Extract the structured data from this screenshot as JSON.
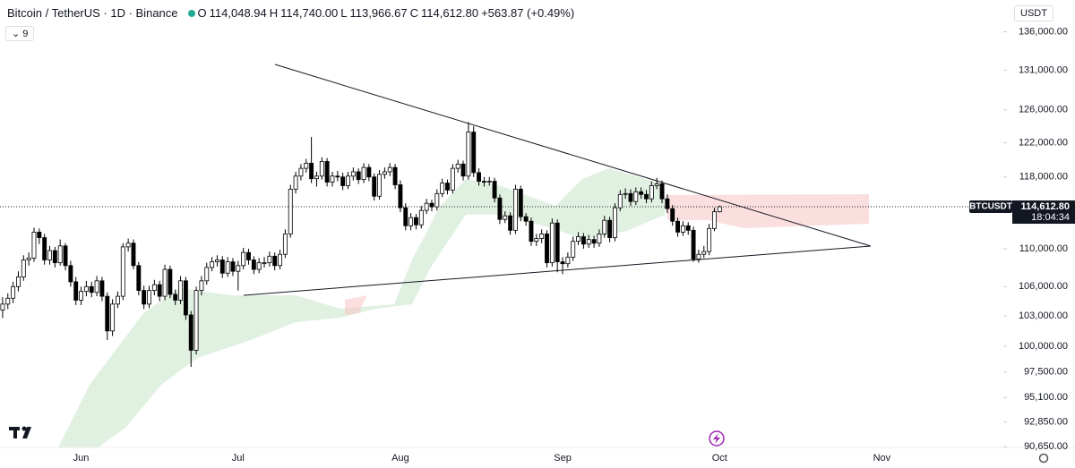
{
  "header": {
    "symbol": "Bitcoin / TetherUS · 1D · Binance",
    "open_letter": "O",
    "open": "114,048.94",
    "high_letter": "H",
    "high": "114,740.00",
    "low_letter": "L",
    "low": "113,966.67",
    "close_letter": "C",
    "close": "114,612.80",
    "change": "+563.87 (+0.49%)",
    "indicators_count": "9",
    "currency": "USDT"
  },
  "chart_data": {
    "type": "candlestick",
    "log_scale": true,
    "grid": false,
    "up_color": "#ffffff",
    "down_color": "#000000",
    "wick_color": "#000000",
    "categories": [
      null,
      null,
      null,
      null,
      null,
      null,
      null,
      null,
      null,
      null,
      null,
      null,
      null,
      null,
      null,
      "Jun",
      null,
      null,
      null,
      null,
      null,
      null,
      null,
      null,
      null,
      null,
      null,
      null,
      null,
      null,
      null,
      null,
      null,
      null,
      null,
      null,
      null,
      null,
      null,
      null,
      null,
      null,
      null,
      null,
      null,
      "Jul",
      null,
      null,
      null,
      null,
      null,
      null,
      null,
      null,
      null,
      null,
      null,
      null,
      null,
      null,
      null,
      null,
      null,
      null,
      null,
      null,
      null,
      null,
      null,
      null,
      null,
      null,
      null,
      null,
      null,
      null,
      "Aug",
      null,
      null,
      null,
      null,
      null,
      null,
      null,
      null,
      null,
      null,
      null,
      null,
      null,
      null,
      null,
      null,
      null,
      null,
      null,
      null,
      null,
      null,
      null,
      null,
      null,
      null,
      null,
      null,
      null,
      null,
      "Sep",
      null,
      null,
      null,
      null,
      null,
      null,
      null,
      null,
      null,
      null,
      null,
      null,
      null,
      null,
      null,
      null,
      null,
      null,
      null,
      null,
      null,
      null,
      null,
      null,
      null,
      null,
      null,
      null,
      null,
      "Oct",
      null,
      null,
      null,
      null,
      null,
      null,
      null,
      null,
      null,
      null,
      null,
      null,
      null,
      null,
      null,
      null,
      null,
      null,
      null,
      null,
      null,
      null,
      null,
      null,
      null,
      null,
      null,
      null,
      null,
      null,
      "Nov",
      null,
      null,
      null,
      null,
      null,
      null,
      null,
      null,
      null,
      null,
      null,
      null,
      null,
      null,
      null,
      null,
      null,
      null,
      null,
      null,
      null
    ],
    "ohlc": [
      [
        103600,
        104900,
        102800,
        104200
      ],
      [
        104200,
        105300,
        103700,
        104800
      ],
      [
        104800,
        106500,
        104300,
        106000
      ],
      [
        106000,
        107600,
        105500,
        107000
      ],
      [
        107000,
        109300,
        106600,
        108800
      ],
      [
        108800,
        109600,
        108200,
        109000
      ],
      [
        109000,
        112300,
        108600,
        111800
      ],
      [
        111800,
        112200,
        110500,
        111200
      ],
      [
        111200,
        111600,
        108300,
        108800
      ],
      [
        108800,
        110300,
        108300,
        109800
      ],
      [
        109800,
        110200,
        108000,
        108500
      ],
      [
        108500,
        111000,
        108200,
        110300
      ],
      [
        110300,
        110600,
        107700,
        108200
      ],
      [
        108200,
        108700,
        106000,
        106500
      ],
      [
        106500,
        107000,
        104100,
        104600
      ],
      [
        104600,
        106000,
        104100,
        105500
      ],
      [
        105500,
        106600,
        105000,
        106000
      ],
      [
        106000,
        106500,
        104900,
        105400
      ],
      [
        105400,
        107100,
        105000,
        106600
      ],
      [
        106600,
        107000,
        104500,
        105000
      ],
      [
        105000,
        105400,
        100600,
        101500
      ],
      [
        101500,
        104700,
        101000,
        104200
      ],
      [
        104200,
        105500,
        103800,
        105000
      ],
      [
        105000,
        110600,
        104600,
        110200
      ],
      [
        110200,
        111100,
        109700,
        110600
      ],
      [
        110600,
        111000,
        107800,
        108200
      ],
      [
        108200,
        108600,
        105100,
        105600
      ],
      [
        105600,
        106100,
        103700,
        104200
      ],
      [
        104200,
        106100,
        103800,
        105600
      ],
      [
        105600,
        106700,
        105100,
        106200
      ],
      [
        106200,
        106600,
        104500,
        105000
      ],
      [
        105000,
        108300,
        104600,
        107800
      ],
      [
        107800,
        108200,
        104800,
        105200
      ],
      [
        105200,
        105700,
        104100,
        104600
      ],
      [
        104600,
        107100,
        104200,
        106600
      ],
      [
        106600,
        107000,
        102600,
        103100
      ],
      [
        103100,
        103500,
        98000,
        99600
      ],
      [
        99600,
        106000,
        99200,
        105600
      ],
      [
        105600,
        107100,
        105100,
        106600
      ],
      [
        106600,
        108500,
        106200,
        108000
      ],
      [
        108000,
        109100,
        107600,
        108600
      ],
      [
        108600,
        109300,
        108100,
        108800
      ],
      [
        108800,
        109200,
        106900,
        107400
      ],
      [
        107400,
        109100,
        107000,
        108600
      ],
      [
        108600,
        109000,
        107100,
        107600
      ],
      [
        107600,
        108700,
        105600,
        108200
      ],
      [
        108200,
        110100,
        107800,
        109600
      ],
      [
        109600,
        110000,
        108300,
        108800
      ],
      [
        108800,
        109200,
        107300,
        107800
      ],
      [
        107800,
        109000,
        107400,
        108500
      ],
      [
        108500,
        109100,
        108000,
        108500
      ],
      [
        108500,
        109700,
        108100,
        109200
      ],
      [
        109200,
        109600,
        107700,
        108200
      ],
      [
        108200,
        109900,
        107800,
        109400
      ],
      [
        109400,
        112100,
        109000,
        111600
      ],
      [
        111600,
        117100,
        111200,
        116600
      ],
      [
        116600,
        118600,
        116100,
        118100
      ],
      [
        118100,
        119500,
        117600,
        119000
      ],
      [
        119000,
        120100,
        118500,
        119600
      ],
      [
        119600,
        122700,
        117300,
        117800
      ],
      [
        117800,
        118600,
        116900,
        118100
      ],
      [
        118100,
        120300,
        117700,
        119800
      ],
      [
        119800,
        120200,
        116900,
        117400
      ],
      [
        117400,
        118600,
        116900,
        118100
      ],
      [
        118100,
        118700,
        117500,
        118000
      ],
      [
        118000,
        118500,
        116500,
        117000
      ],
      [
        117000,
        118600,
        116600,
        118100
      ],
      [
        118100,
        119100,
        117600,
        118600
      ],
      [
        118600,
        119000,
        117200,
        117700
      ],
      [
        117700,
        119600,
        117300,
        119100
      ],
      [
        119100,
        119500,
        117500,
        118000
      ],
      [
        118000,
        118400,
        115300,
        115800
      ],
      [
        115800,
        118800,
        115400,
        118300
      ],
      [
        118300,
        119100,
        117800,
        118600
      ],
      [
        118600,
        119600,
        118100,
        119100
      ],
      [
        119100,
        119500,
        116600,
        117100
      ],
      [
        117100,
        117600,
        114000,
        114500
      ],
      [
        114500,
        115000,
        112000,
        112500
      ],
      [
        112500,
        113900,
        112000,
        113400
      ],
      [
        113400,
        113800,
        112100,
        112600
      ],
      [
        112600,
        114700,
        112200,
        114200
      ],
      [
        114200,
        115500,
        113800,
        115000
      ],
      [
        115000,
        115400,
        114100,
        114600
      ],
      [
        114600,
        116600,
        114200,
        116100
      ],
      [
        116100,
        117800,
        115700,
        117300
      ],
      [
        117300,
        117700,
        116000,
        116500
      ],
      [
        116500,
        119500,
        116100,
        119000
      ],
      [
        119000,
        120000,
        118500,
        119500
      ],
      [
        119500,
        119900,
        117600,
        118100
      ],
      [
        118100,
        124500,
        117700,
        123300
      ],
      [
        123300,
        124000,
        118000,
        118500
      ],
      [
        118500,
        119000,
        117000,
        117500
      ],
      [
        117500,
        118000,
        116900,
        117400
      ],
      [
        117400,
        118000,
        117000,
        117500
      ],
      [
        117500,
        117900,
        115100,
        115600
      ],
      [
        115600,
        116000,
        112700,
        113200
      ],
      [
        113200,
        114100,
        112800,
        113600
      ],
      [
        113600,
        114000,
        111500,
        112000
      ],
      [
        112000,
        117100,
        111600,
        116600
      ],
      [
        116600,
        117000,
        113000,
        113500
      ],
      [
        113500,
        113900,
        112500,
        113000
      ],
      [
        113000,
        113400,
        110300,
        110800
      ],
      [
        110800,
        111600,
        110300,
        111100
      ],
      [
        111100,
        112100,
        110600,
        111600
      ],
      [
        111600,
        112000,
        108000,
        108500
      ],
      [
        108500,
        113300,
        108100,
        112800
      ],
      [
        112800,
        113200,
        107500,
        108600
      ],
      [
        108600,
        109100,
        107300,
        108400
      ],
      [
        108400,
        109600,
        108000,
        109100
      ],
      [
        109100,
        111300,
        108700,
        110800
      ],
      [
        110800,
        111800,
        110400,
        111300
      ],
      [
        111300,
        111700,
        110000,
        110500
      ],
      [
        110500,
        111500,
        110100,
        111000
      ],
      [
        111000,
        111400,
        110100,
        110600
      ],
      [
        110600,
        112100,
        110200,
        111600
      ],
      [
        111600,
        113600,
        111200,
        113100
      ],
      [
        113100,
        113500,
        110700,
        111200
      ],
      [
        111200,
        115000,
        110800,
        114500
      ],
      [
        114500,
        116500,
        114100,
        116000
      ],
      [
        116000,
        116700,
        115500,
        116100
      ],
      [
        116100,
        116600,
        114700,
        115200
      ],
      [
        115200,
        116800,
        114800,
        116300
      ],
      [
        116300,
        116800,
        115500,
        116000
      ],
      [
        116000,
        116500,
        115000,
        115500
      ],
      [
        115500,
        117500,
        115100,
        117000
      ],
      [
        117000,
        117900,
        116600,
        117200
      ],
      [
        117200,
        117600,
        115000,
        115500
      ],
      [
        115500,
        116000,
        113900,
        114400
      ],
      [
        114400,
        114800,
        112500,
        113000
      ],
      [
        113000,
        113400,
        111300,
        111800
      ],
      [
        111800,
        113000,
        111400,
        112500
      ],
      [
        112500,
        112900,
        111500,
        112000
      ],
      [
        112000,
        112400,
        108600,
        108900
      ],
      [
        108900,
        109900,
        108500,
        109400
      ],
      [
        109400,
        110300,
        109000,
        109700
      ],
      [
        109700,
        112700,
        109300,
        112200
      ],
      [
        112200,
        114500,
        111900,
        114050
      ],
      [
        114048.94,
        114740,
        113966.67,
        114612.8
      ],
      null,
      null,
      null,
      null,
      null,
      null,
      null,
      null,
      null,
      null,
      null,
      null,
      null,
      null,
      null,
      null,
      null,
      null,
      null,
      null,
      null,
      null,
      null,
      null,
      null,
      null,
      null,
      null,
      null,
      null,
      null,
      null,
      null,
      null,
      null,
      null,
      null,
      null,
      null,
      null,
      null,
      null,
      null,
      null,
      null,
      null,
      null,
      null,
      null,
      null,
      null,
      null
    ],
    "ylim": [
      90570,
      140300
    ],
    "yticks": [
      {
        "value": 136000,
        "label": "136,000.00"
      },
      {
        "value": 131000,
        "label": "131,000.00"
      },
      {
        "value": 126000,
        "label": "126,000.00"
      },
      {
        "value": 122000,
        "label": "122,000.00"
      },
      {
        "value": 118000,
        "label": "118,000.00"
      },
      {
        "value": 110000,
        "label": "110,000.00"
      },
      {
        "value": 106000,
        "label": "106,000.00"
      },
      {
        "value": 103000,
        "label": "103,000.00"
      },
      {
        "value": 100000,
        "label": "100,000.00"
      },
      {
        "value": 97500,
        "label": "97,500.00"
      },
      {
        "value": 95100,
        "label": "95,100.00"
      },
      {
        "value": 92850,
        "label": "92,850.00"
      },
      {
        "value": 90650,
        "label": "90,650.00"
      }
    ],
    "last_price": {
      "value": 114612.8,
      "label": "114,612.80"
    },
    "countdown": "18:04:34",
    "symbol_tag": "BTCUSDT"
  }
}
